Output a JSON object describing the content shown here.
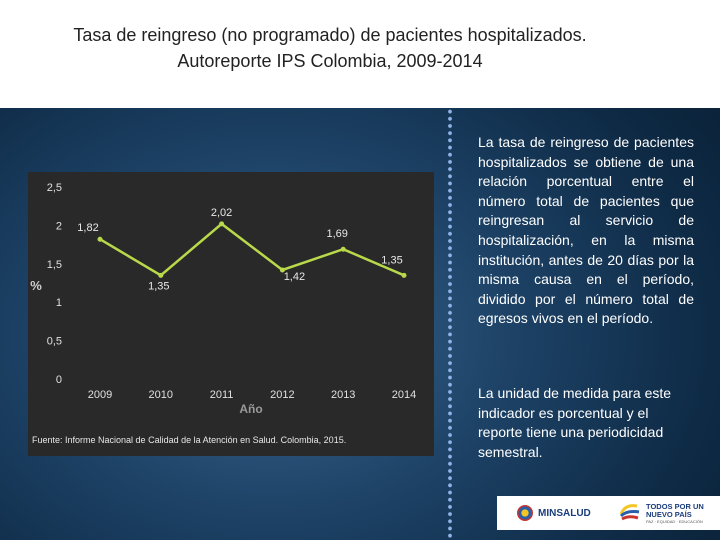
{
  "header": {
    "title_line1": "Tasa de reingreso (no programado) de pacientes hospitalizados.",
    "title_line2": "Autoreporte IPS Colombia, 2009-2014"
  },
  "chart_data": {
    "type": "line",
    "x": [
      "2009",
      "2010",
      "2011",
      "2012",
      "2013",
      "2014"
    ],
    "series": [
      {
        "name": "Tasa de reingreso",
        "values": [
          1.82,
          1.35,
          2.02,
          1.42,
          1.69,
          1.35
        ]
      }
    ],
    "data_labels": [
      "1,82",
      "1,35",
      "2,02",
      "1,42",
      "1,69",
      "1,35"
    ],
    "y_ticks": [
      0,
      0.5,
      1,
      1.5,
      2,
      2.5
    ],
    "y_tick_labels": [
      "0",
      "0,5",
      "1",
      "1,5",
      "2",
      "2,5"
    ],
    "ylim": [
      0,
      2.5
    ],
    "xlabel": "Año",
    "ylabel": "%",
    "line_color": "#b9d84a",
    "background": "#292929",
    "grid": false
  },
  "source_note": "Fuente: Informe Nacional de Calidad de la Atención en Salud. Colombia, 2015.",
  "description": {
    "paragraph1": "La tasa de reingreso de pacientes hospitalizados se obtiene de una relación porcentual entre el número total de pacientes que reingresan al servicio de hospitalización, en la misma institución, antes de 20 días por la misma causa en el período, dividido por el número total de egresos vivos en el período.",
    "paragraph2": "La unidad de medida para este indicador es porcentual y el reporte tiene una periodicidad semestral."
  },
  "logos": {
    "minsalud": "MINSALUD",
    "todos_line1": "TODOS POR UN",
    "todos_line2": "NUEVO PAÍS",
    "todos_line3": "PAZ · EQUIDAD · EDUCACIÓN"
  }
}
